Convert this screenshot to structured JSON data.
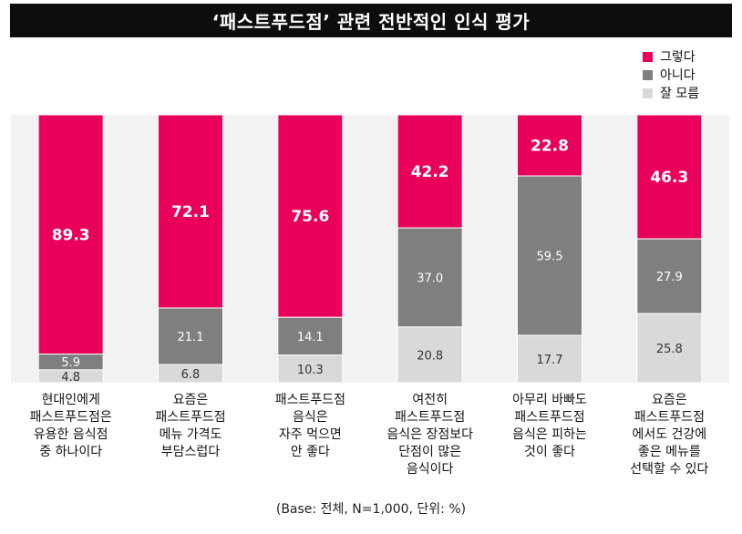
{
  "title": "‘패스트푸드점’ 관련 전반적인 인식 평가",
  "footnote": "(Base: 전체, N=1,000, 단위: %)",
  "colors": {
    "agree": "#e8005a",
    "disagree": "#7f7f7f",
    "unsure": "#d9d9d9",
    "plot_bg": "#f2f2f2",
    "title_bg": "#0d0d0d"
  },
  "chart_data": {
    "type": "bar",
    "stacked": true,
    "title": "‘패스트푸드점’ 관련 전반적인 인식 평가",
    "categories": [
      [
        "현대인에게",
        "패스트푸드점은",
        "유용한 음식점",
        "중 하나이다"
      ],
      [
        "요즘은",
        "패스트푸드점",
        "메뉴 가격도",
        "부담스럽다"
      ],
      [
        "패스트푸드점",
        "음식은",
        "자주 먹으면",
        "안 좋다"
      ],
      [
        "여전히",
        "패스트푸드점",
        "음식은 장점보다",
        "단점이 많은",
        "음식이다"
      ],
      [
        "아무리 바빠도",
        "패스트푸드점",
        "음식은 피하는",
        "것이 좋다"
      ],
      [
        "요즘은",
        "패스트푸드점",
        "에서도 건강에",
        "좋은 메뉴를",
        "선택할 수 있다"
      ]
    ],
    "series": [
      {
        "name": "그렇다",
        "values": [
          89.3,
          72.1,
          75.6,
          42.2,
          22.8,
          46.3
        ]
      },
      {
        "name": "아니다",
        "values": [
          5.9,
          21.1,
          14.1,
          37.0,
          59.5,
          27.9
        ]
      },
      {
        "name": "잘 모름",
        "values": [
          4.8,
          6.8,
          10.3,
          20.8,
          17.7,
          25.8
        ]
      }
    ],
    "value_labels": [
      [
        "89.3",
        "72.1",
        "75.6",
        "42.2",
        "22.8",
        "46.3"
      ],
      [
        "5.9",
        "21.1",
        "14.1",
        "37.0",
        "59.5",
        "27.9"
      ],
      [
        "4.8",
        "6.8",
        "10.3",
        "20.8",
        "17.7",
        "25.8"
      ]
    ],
    "ylim": [
      0,
      100
    ],
    "legend_position": "top-right",
    "unit": "%"
  }
}
